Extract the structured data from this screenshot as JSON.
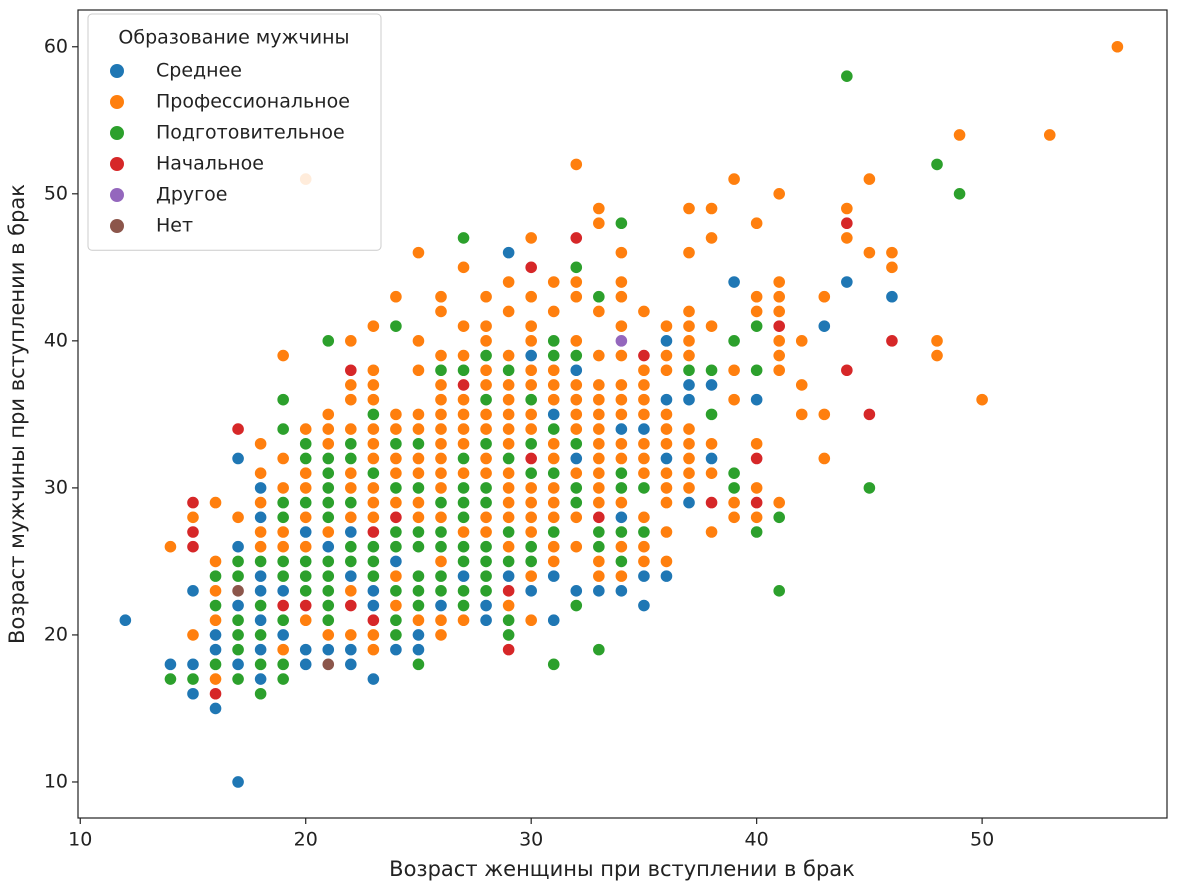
{
  "chart_data": {
    "type": "scatter",
    "x_label": "Возраст женщины при вступлении в брак",
    "y_label": "Возраст мужчины при вступлении в брак",
    "legend_title": "Образование мужчины",
    "legend_position": "upper left",
    "grid": false,
    "xlim": [
      9.9,
      58.2
    ],
    "ylim": [
      7.55,
      62.5
    ],
    "xticks": [
      10,
      20,
      30,
      40,
      50
    ],
    "yticks": [
      10,
      20,
      30,
      40,
      50,
      60
    ],
    "series": [
      {
        "name": "Среднее",
        "color": "#1f77b4",
        "x": [
          12,
          14,
          15,
          15,
          15,
          16,
          16,
          16,
          16,
          17,
          17,
          17,
          17,
          17,
          17,
          17,
          18,
          18,
          18,
          18,
          18,
          18,
          18,
          19,
          19,
          20,
          20,
          20,
          20,
          21,
          21,
          21,
          22,
          22,
          22,
          22,
          23,
          23,
          23,
          24,
          24,
          25,
          25,
          26,
          27,
          27,
          28,
          28,
          28,
          29,
          29,
          30,
          30,
          31,
          31,
          31,
          32,
          32,
          32,
          33,
          34,
          34,
          34,
          35,
          35,
          35,
          36,
          36,
          36,
          36,
          37,
          37,
          37,
          38,
          38,
          39,
          40,
          43,
          44,
          46
        ],
        "values": [
          21,
          18,
          23,
          18,
          16,
          15,
          20,
          19,
          18,
          10,
          32,
          26,
          18,
          19,
          20,
          22,
          30,
          28,
          21,
          19,
          17,
          23,
          24,
          20,
          23,
          18,
          19,
          27,
          23,
          26,
          21,
          19,
          27,
          18,
          19,
          24,
          17,
          23,
          22,
          19,
          25,
          20,
          19,
          22,
          24,
          21,
          21,
          22,
          40,
          46,
          24,
          39,
          23,
          35,
          24,
          21,
          38,
          32,
          23,
          23,
          23,
          34,
          28,
          34,
          22,
          24,
          24,
          36,
          40,
          32,
          37,
          36,
          29,
          37,
          32,
          44,
          36,
          41,
          44,
          43
        ]
      },
      {
        "name": "Профессиональное",
        "color": "#ff7f0e",
        "x": [
          14,
          15,
          15,
          16,
          16,
          16,
          16,
          16,
          16,
          16,
          17,
          17,
          18,
          18,
          18,
          18,
          18,
          18,
          18,
          18,
          19,
          19,
          19,
          19,
          19,
          19,
          19,
          19,
          20,
          20,
          20,
          20,
          20,
          20,
          20,
          20,
          20,
          20,
          21,
          21,
          21,
          21,
          21,
          21,
          21,
          21,
          21,
          21,
          21,
          22,
          22,
          22,
          22,
          22,
          22,
          22,
          22,
          22,
          22,
          22,
          22,
          22,
          23,
          23,
          23,
          23,
          23,
          23,
          23,
          23,
          23,
          23,
          23,
          23,
          23,
          23,
          24,
          24,
          24,
          24,
          24,
          24,
          24,
          24,
          24,
          24,
          24,
          24,
          24,
          24,
          25,
          25,
          25,
          25,
          25,
          25,
          25,
          25,
          25,
          25,
          25,
          25,
          25,
          25,
          25,
          26,
          26,
          26,
          26,
          26,
          26,
          26,
          26,
          26,
          26,
          26,
          26,
          26,
          26,
          26,
          26,
          26,
          26,
          26,
          26,
          27,
          27,
          27,
          27,
          27,
          27,
          27,
          27,
          27,
          27,
          27,
          27,
          27,
          27,
          27,
          27,
          27,
          27,
          28,
          28,
          28,
          28,
          28,
          28,
          28,
          28,
          28,
          28,
          28,
          28,
          28,
          28,
          28,
          28,
          28,
          28,
          29,
          29,
          29,
          29,
          29,
          29,
          29,
          29,
          29,
          29,
          29,
          29,
          29,
          29,
          29,
          29,
          29,
          29,
          30,
          30,
          30,
          30,
          30,
          30,
          30,
          30,
          30,
          30,
          30,
          30,
          30,
          30,
          30,
          30,
          30,
          30,
          30,
          30,
          31,
          31,
          31,
          31,
          31,
          31,
          31,
          31,
          31,
          31,
          31,
          31,
          31,
          31,
          31,
          31,
          31,
          32,
          32,
          32,
          32,
          32,
          32,
          32,
          32,
          32,
          32,
          32,
          32,
          32,
          32,
          33,
          33,
          33,
          33,
          33,
          33,
          33,
          33,
          33,
          33,
          33,
          33,
          33,
          33,
          33,
          33,
          34,
          34,
          34,
          34,
          34,
          34,
          34,
          34,
          34,
          34,
          34,
          34,
          34,
          34,
          34,
          34,
          35,
          35,
          35,
          35,
          35,
          35,
          35,
          35,
          35,
          35,
          35,
          35,
          36,
          36,
          36,
          36,
          36,
          36,
          36,
          36,
          36,
          36,
          36,
          37,
          37,
          37,
          37,
          37,
          37,
          37,
          37,
          37,
          37,
          37,
          38,
          38,
          38,
          38,
          38,
          38,
          38,
          39,
          39,
          39,
          39,
          39,
          40,
          40,
          40,
          40,
          40,
          40,
          41,
          41,
          41,
          41,
          41,
          41,
          41,
          41,
          42,
          42,
          42,
          43,
          43,
          43,
          44,
          44,
          45,
          45,
          46,
          46,
          48,
          48,
          49,
          50,
          53,
          56
        ],
        "values": [
          26,
          20,
          28,
          17,
          21,
          22,
          23,
          24,
          25,
          29,
          28,
          21,
          18,
          20,
          25,
          26,
          27,
          29,
          31,
          33,
          39,
          32,
          30,
          27,
          26,
          25,
          21,
          19,
          51,
          34,
          31,
          30,
          29,
          28,
          26,
          25,
          24,
          21,
          35,
          34,
          33,
          30,
          29,
          28,
          27,
          24,
          23,
          22,
          20,
          40,
          37,
          36,
          34,
          33,
          31,
          30,
          29,
          28,
          26,
          25,
          23,
          20,
          41,
          38,
          37,
          36,
          34,
          33,
          32,
          30,
          29,
          28,
          26,
          24,
          20,
          19,
          43,
          35,
          34,
          33,
          32,
          31,
          30,
          29,
          27,
          26,
          24,
          23,
          22,
          21,
          46,
          40,
          38,
          35,
          34,
          33,
          32,
          31,
          30,
          29,
          28,
          27,
          26,
          22,
          21,
          43,
          42,
          39,
          37,
          36,
          35,
          34,
          33,
          32,
          31,
          30,
          29,
          28,
          27,
          26,
          25,
          24,
          23,
          21,
          20,
          45,
          41,
          39,
          38,
          36,
          35,
          34,
          33,
          32,
          31,
          30,
          29,
          28,
          27,
          26,
          25,
          22,
          21,
          43,
          41,
          40,
          39,
          38,
          37,
          35,
          34,
          33,
          32,
          31,
          30,
          29,
          28,
          27,
          26,
          25,
          23,
          44,
          42,
          39,
          38,
          37,
          36,
          35,
          34,
          33,
          32,
          31,
          30,
          29,
          28,
          27,
          26,
          25,
          22,
          47,
          43,
          41,
          40,
          38,
          37,
          36,
          35,
          34,
          33,
          32,
          31,
          30,
          29,
          28,
          27,
          26,
          25,
          24,
          21,
          44,
          42,
          40,
          39,
          38,
          37,
          36,
          34,
          33,
          32,
          31,
          30,
          29,
          28,
          27,
          26,
          25,
          52,
          44,
          43,
          40,
          37,
          36,
          35,
          34,
          33,
          31,
          30,
          29,
          28,
          26,
          49,
          48,
          42,
          39,
          37,
          36,
          35,
          34,
          33,
          32,
          31,
          30,
          29,
          28,
          25,
          24,
          46,
          44,
          43,
          41,
          39,
          37,
          36,
          35,
          33,
          32,
          31,
          30,
          29,
          27,
          26,
          24,
          42,
          38,
          37,
          36,
          35,
          33,
          32,
          31,
          30,
          28,
          26,
          25,
          41,
          39,
          38,
          35,
          34,
          33,
          31,
          30,
          29,
          27,
          25,
          49,
          46,
          42,
          41,
          40,
          39,
          34,
          33,
          32,
          31,
          30,
          49,
          47,
          41,
          33,
          31,
          29,
          27,
          51,
          38,
          36,
          29,
          28,
          48,
          43,
          42,
          33,
          30,
          28,
          50,
          44,
          43,
          42,
          40,
          39,
          38,
          29,
          40,
          37,
          35,
          43,
          35,
          32,
          49,
          47,
          51,
          46,
          46,
          45,
          40,
          39,
          54,
          36,
          54,
          60
        ]
      },
      {
        "name": "Подготовительное",
        "color": "#2ca02c",
        "x": [
          14,
          15,
          16,
          16,
          16,
          17,
          17,
          17,
          17,
          17,
          17,
          17,
          18,
          18,
          18,
          18,
          18,
          19,
          19,
          19,
          19,
          19,
          19,
          19,
          19,
          19,
          19,
          20,
          20,
          20,
          20,
          20,
          20,
          20,
          21,
          21,
          21,
          21,
          21,
          21,
          21,
          21,
          21,
          21,
          21,
          22,
          22,
          22,
          22,
          22,
          22,
          23,
          23,
          23,
          23,
          23,
          23,
          24,
          24,
          24,
          24,
          24,
          24,
          24,
          24,
          24,
          25,
          25,
          25,
          25,
          25,
          25,
          25,
          25,
          26,
          26,
          26,
          26,
          26,
          26,
          27,
          27,
          27,
          27,
          27,
          27,
          27,
          27,
          27,
          27,
          28,
          28,
          28,
          28,
          28,
          28,
          28,
          28,
          28,
          29,
          29,
          29,
          29,
          29,
          29,
          30,
          30,
          30,
          30,
          30,
          30,
          31,
          31,
          31,
          31,
          31,
          31,
          32,
          32,
          32,
          32,
          32,
          32,
          33,
          33,
          33,
          33,
          34,
          34,
          34,
          34,
          34,
          35,
          35,
          37,
          38,
          38,
          39,
          39,
          39,
          40,
          40,
          40,
          41,
          41,
          44,
          45,
          48,
          49
        ],
        "values": [
          17,
          17,
          24,
          22,
          18,
          25,
          24,
          23,
          21,
          20,
          19,
          17,
          25,
          22,
          20,
          18,
          16,
          36,
          34,
          29,
          28,
          25,
          24,
          22,
          21,
          18,
          17,
          33,
          32,
          29,
          25,
          24,
          23,
          22,
          40,
          32,
          31,
          30,
          29,
          28,
          25,
          24,
          23,
          22,
          21,
          33,
          32,
          29,
          26,
          25,
          22,
          35,
          31,
          27,
          26,
          25,
          24,
          41,
          33,
          30,
          28,
          27,
          26,
          23,
          21,
          20,
          33,
          30,
          27,
          26,
          24,
          23,
          22,
          18,
          38,
          29,
          27,
          26,
          24,
          23,
          47,
          38,
          32,
          30,
          29,
          28,
          26,
          25,
          23,
          22,
          39,
          36,
          33,
          30,
          29,
          26,
          25,
          24,
          23,
          38,
          32,
          27,
          25,
          21,
          20,
          36,
          33,
          32,
          31,
          26,
          25,
          40,
          39,
          34,
          31,
          27,
          18,
          45,
          39,
          33,
          30,
          29,
          22,
          43,
          27,
          26,
          19,
          48,
          31,
          30,
          27,
          25,
          30,
          27,
          38,
          38,
          35,
          40,
          31,
          30,
          41,
          38,
          27,
          28,
          23,
          58,
          30,
          52,
          50
        ]
      },
      {
        "name": "Начальное",
        "color": "#d62728",
        "x": [
          15,
          15,
          15,
          16,
          17,
          19,
          20,
          22,
          22,
          23,
          23,
          24,
          27,
          29,
          29,
          30,
          30,
          32,
          33,
          35,
          38,
          40,
          40,
          41,
          44,
          44,
          45,
          46
        ],
        "values": [
          29,
          27,
          26,
          16,
          34,
          22,
          22,
          38,
          22,
          27,
          21,
          28,
          37,
          23,
          19,
          45,
          32,
          47,
          28,
          39,
          29,
          32,
          29,
          41,
          48,
          38,
          35,
          40
        ]
      },
      {
        "name": "Другое",
        "color": "#9467bd",
        "x": [
          34
        ],
        "values": [
          40
        ]
      },
      {
        "name": "Нет",
        "color": "#8c564b",
        "x": [
          17,
          21
        ],
        "values": [
          23,
          18
        ]
      }
    ]
  }
}
